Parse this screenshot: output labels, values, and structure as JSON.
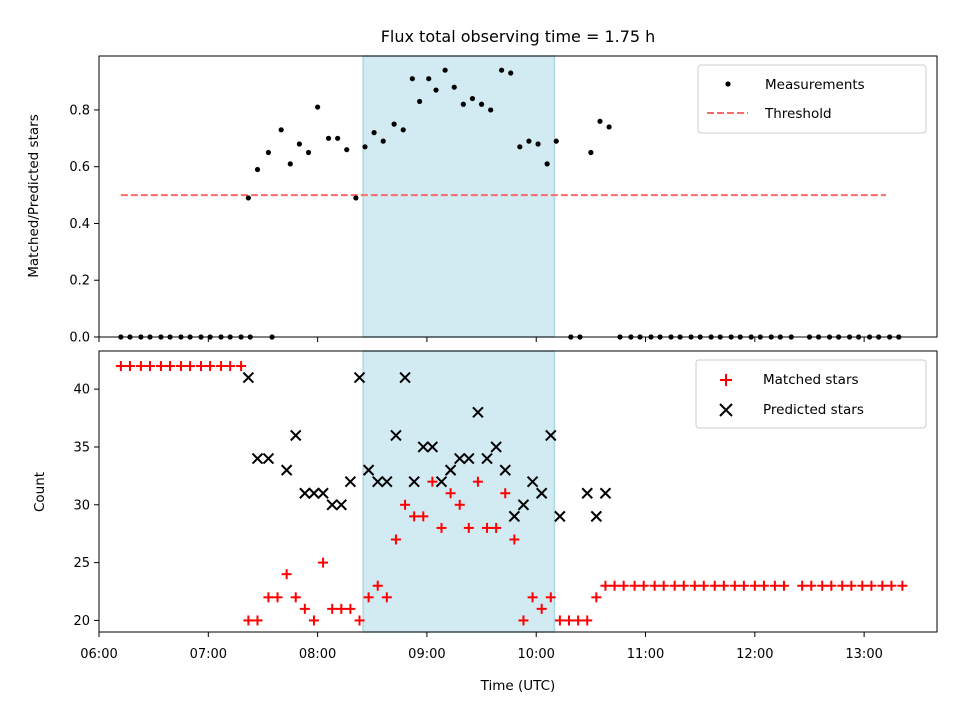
{
  "title": "Flux total observing time = 1.75 h",
  "colors": {
    "shade": "#add8e6",
    "measurement": "#000000",
    "threshold": "#ff6b6b",
    "matched": "#ff0000",
    "predicted": "#000000"
  },
  "chart_data": [
    {
      "type": "scatter",
      "name": "top",
      "ylabel": "Matched/Predicted stars",
      "xlim": [
        "06:00",
        "13:40"
      ],
      "ylim": [
        0,
        0.99
      ],
      "yticks": [
        0.0,
        0.2,
        0.4,
        0.6,
        0.8
      ],
      "yticklabels": [
        "0.0",
        "0.2",
        "0.4",
        "0.6",
        "0.8"
      ],
      "legend": {
        "position": "upper right",
        "entries": [
          "Measurements",
          "Threshold"
        ]
      },
      "shaded_region": [
        "08:25",
        "10:10"
      ],
      "threshold": {
        "name": "Threshold",
        "y": 0.5,
        "x": [
          "06:12",
          "13:12"
        ]
      },
      "series": [
        {
          "name": "Measurements",
          "points": [
            [
              "06:12",
              0
            ],
            [
              "06:17",
              0
            ],
            [
              "06:23",
              0
            ],
            [
              "06:28",
              0
            ],
            [
              "06:34",
              0
            ],
            [
              "06:39",
              0
            ],
            [
              "06:45",
              0
            ],
            [
              "06:50",
              0
            ],
            [
              "06:56",
              0
            ],
            [
              "07:01",
              0
            ],
            [
              "07:07",
              0
            ],
            [
              "07:12",
              0
            ],
            [
              "07:18",
              0
            ],
            [
              "07:23",
              0
            ],
            [
              "07:22",
              0.49
            ],
            [
              "07:27",
              0.59
            ],
            [
              "07:33",
              0.65
            ],
            [
              "07:35",
              0
            ],
            [
              "07:40",
              0.73
            ],
            [
              "07:45",
              0.61
            ],
            [
              "07:50",
              0.68
            ],
            [
              "07:55",
              0.65
            ],
            [
              "08:00",
              0.81
            ],
            [
              "08:06",
              0.7
            ],
            [
              "08:11",
              0.7
            ],
            [
              "08:16",
              0.66
            ],
            [
              "08:21",
              0.49
            ],
            [
              "08:26",
              0.67
            ],
            [
              "08:31",
              0.72
            ],
            [
              "08:36",
              0.69
            ],
            [
              "08:42",
              0.75
            ],
            [
              "08:47",
              0.73
            ],
            [
              "08:52",
              0.91
            ],
            [
              "08:56",
              0.83
            ],
            [
              "09:01",
              0.91
            ],
            [
              "09:05",
              0.87
            ],
            [
              "09:10",
              0.94
            ],
            [
              "09:15",
              0.88
            ],
            [
              "09:20",
              0.82
            ],
            [
              "09:25",
              0.84
            ],
            [
              "09:30",
              0.82
            ],
            [
              "09:35",
              0.8
            ],
            [
              "09:41",
              0.94
            ],
            [
              "09:46",
              0.93
            ],
            [
              "09:51",
              0.67
            ],
            [
              "09:56",
              0.69
            ],
            [
              "10:01",
              0.68
            ],
            [
              "10:06",
              0.61
            ],
            [
              "10:11",
              0.69
            ],
            [
              "10:19",
              0
            ],
            [
              "10:24",
              0
            ],
            [
              "10:30",
              0.65
            ],
            [
              "10:35",
              0.76
            ],
            [
              "10:40",
              0.74
            ],
            [
              "10:46",
              0
            ],
            [
              "10:52",
              0
            ],
            [
              "10:57",
              0
            ],
            [
              "11:03",
              0
            ],
            [
              "11:08",
              0
            ],
            [
              "11:14",
              0
            ],
            [
              "11:19",
              0
            ],
            [
              "11:25",
              0
            ],
            [
              "11:30",
              0
            ],
            [
              "11:36",
              0
            ],
            [
              "11:41",
              0
            ],
            [
              "11:47",
              0
            ],
            [
              "11:52",
              0
            ],
            [
              "11:58",
              0
            ],
            [
              "12:03",
              0
            ],
            [
              "12:09",
              0
            ],
            [
              "12:14",
              0
            ],
            [
              "12:20",
              0
            ],
            [
              "12:30",
              0
            ],
            [
              "12:35",
              0
            ],
            [
              "12:41",
              0
            ],
            [
              "12:46",
              0
            ],
            [
              "12:52",
              0
            ],
            [
              "12:57",
              0
            ],
            [
              "13:03",
              0
            ],
            [
              "13:08",
              0
            ],
            [
              "13:14",
              0
            ],
            [
              "13:19",
              0
            ]
          ]
        }
      ]
    },
    {
      "type": "scatter",
      "name": "bottom",
      "xlabel": "Time (UTC)",
      "ylabel": "Count",
      "xlim": [
        "06:00",
        "13:40"
      ],
      "ylim": [
        19,
        43.3
      ],
      "xticks": [
        "06:00",
        "07:00",
        "08:00",
        "09:00",
        "10:00",
        "11:00",
        "12:00",
        "13:00"
      ],
      "yticks": [
        20,
        25,
        30,
        35,
        40
      ],
      "yticklabels": [
        "20",
        "25",
        "30",
        "35",
        "40"
      ],
      "legend": {
        "position": "upper right",
        "entries": [
          "Matched stars",
          "Predicted stars"
        ]
      },
      "shaded_region": [
        "08:25",
        "10:10"
      ],
      "series": [
        {
          "name": "Matched stars",
          "marker": "plus",
          "points": [
            [
              "06:12",
              42
            ],
            [
              "06:17",
              42
            ],
            [
              "06:23",
              42
            ],
            [
              "06:28",
              42
            ],
            [
              "06:34",
              42
            ],
            [
              "06:39",
              42
            ],
            [
              "06:45",
              42
            ],
            [
              "06:50",
              42
            ],
            [
              "06:56",
              42
            ],
            [
              "07:01",
              42
            ],
            [
              "07:07",
              42
            ],
            [
              "07:12",
              42
            ],
            [
              "07:18",
              42
            ],
            [
              "07:22",
              20
            ],
            [
              "07:27",
              20
            ],
            [
              "07:33",
              22
            ],
            [
              "07:38",
              22
            ],
            [
              "07:43",
              24
            ],
            [
              "07:48",
              22
            ],
            [
              "07:53",
              21
            ],
            [
              "07:58",
              20
            ],
            [
              "08:03",
              25
            ],
            [
              "08:08",
              21
            ],
            [
              "08:13",
              21
            ],
            [
              "08:18",
              21
            ],
            [
              "08:23",
              20
            ],
            [
              "08:28",
              22
            ],
            [
              "08:33",
              23
            ],
            [
              "08:38",
              22
            ],
            [
              "08:43",
              27
            ],
            [
              "08:48",
              30
            ],
            [
              "08:53",
              29
            ],
            [
              "08:58",
              29
            ],
            [
              "09:03",
              32
            ],
            [
              "09:08",
              28
            ],
            [
              "09:13",
              31
            ],
            [
              "09:18",
              30
            ],
            [
              "09:23",
              28
            ],
            [
              "09:28",
              32
            ],
            [
              "09:33",
              28
            ],
            [
              "09:38",
              28
            ],
            [
              "09:43",
              31
            ],
            [
              "09:48",
              27
            ],
            [
              "09:53",
              20
            ],
            [
              "09:58",
              22
            ],
            [
              "10:03",
              21
            ],
            [
              "10:08",
              22
            ],
            [
              "10:13",
              20
            ],
            [
              "10:18",
              20
            ],
            [
              "10:23",
              20
            ],
            [
              "10:28",
              20
            ],
            [
              "10:33",
              22
            ],
            [
              "10:38",
              23
            ],
            [
              "10:43",
              23
            ],
            [
              "10:48",
              23
            ],
            [
              "10:54",
              23
            ],
            [
              "10:59",
              23
            ],
            [
              "11:05",
              23
            ],
            [
              "11:10",
              23
            ],
            [
              "11:16",
              23
            ],
            [
              "11:21",
              23
            ],
            [
              "11:27",
              23
            ],
            [
              "11:32",
              23
            ],
            [
              "11:38",
              23
            ],
            [
              "11:43",
              23
            ],
            [
              "11:49",
              23
            ],
            [
              "11:54",
              23
            ],
            [
              "12:00",
              23
            ],
            [
              "12:05",
              23
            ],
            [
              "12:11",
              23
            ],
            [
              "12:16",
              23
            ],
            [
              "12:26",
              23
            ],
            [
              "12:31",
              23
            ],
            [
              "12:37",
              23
            ],
            [
              "12:42",
              23
            ],
            [
              "12:48",
              23
            ],
            [
              "12:53",
              23
            ],
            [
              "12:59",
              23
            ],
            [
              "13:04",
              23
            ],
            [
              "13:10",
              23
            ],
            [
              "13:15",
              23
            ],
            [
              "13:21",
              23
            ]
          ]
        },
        {
          "name": "Predicted stars",
          "marker": "x",
          "points": [
            [
              "07:22",
              41
            ],
            [
              "07:27",
              34
            ],
            [
              "07:33",
              34
            ],
            [
              "07:43",
              33
            ],
            [
              "07:48",
              36
            ],
            [
              "07:53",
              31
            ],
            [
              "07:58",
              31
            ],
            [
              "08:03",
              31
            ],
            [
              "08:08",
              30
            ],
            [
              "08:13",
              30
            ],
            [
              "08:18",
              32
            ],
            [
              "08:23",
              41
            ],
            [
              "08:28",
              33
            ],
            [
              "08:33",
              32
            ],
            [
              "08:38",
              32
            ],
            [
              "08:43",
              36
            ],
            [
              "08:48",
              41
            ],
            [
              "08:53",
              32
            ],
            [
              "08:58",
              35
            ],
            [
              "09:03",
              35
            ],
            [
              "09:08",
              32
            ],
            [
              "09:13",
              33
            ],
            [
              "09:18",
              34
            ],
            [
              "09:23",
              34
            ],
            [
              "09:28",
              38
            ],
            [
              "09:33",
              34
            ],
            [
              "09:38",
              35
            ],
            [
              "09:43",
              33
            ],
            [
              "09:48",
              29
            ],
            [
              "09:53",
              30
            ],
            [
              "09:58",
              32
            ],
            [
              "10:03",
              31
            ],
            [
              "10:08",
              36
            ],
            [
              "10:13",
              29
            ],
            [
              "10:28",
              31
            ],
            [
              "10:33",
              29
            ],
            [
              "10:38",
              31
            ]
          ]
        }
      ]
    }
  ]
}
